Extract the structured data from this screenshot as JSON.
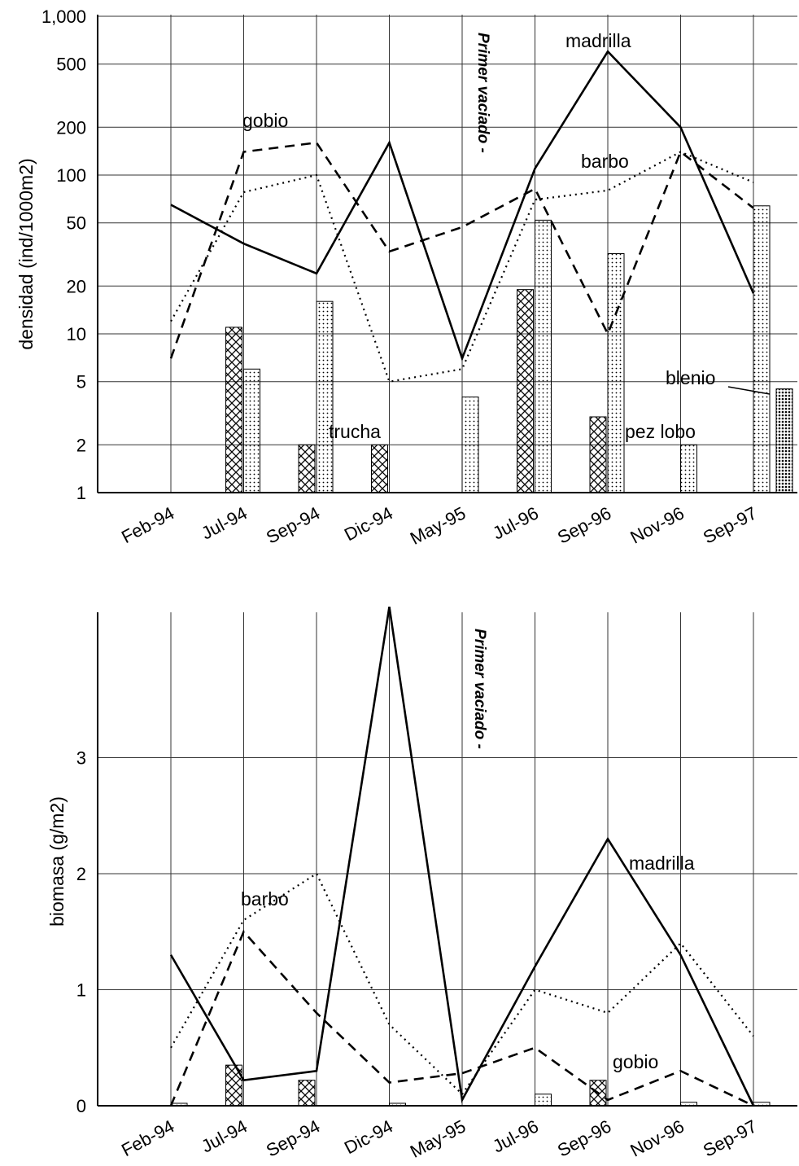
{
  "chart_data": [
    {
      "type": "line",
      "ylabel": "densidad (ind/1000m2)",
      "yscale": "log",
      "ylim": [
        1,
        1000
      ],
      "yticks": [
        "1",
        "2",
        "5",
        "10",
        "20",
        "50",
        "100",
        "200",
        "500",
        "1,000"
      ],
      "grid": true,
      "categories": [
        "Feb-94",
        "Jul-94",
        "Sep-94",
        "Dic-94",
        "May-95",
        "Jul-96",
        "Sep-96",
        "Nov-96",
        "Sep-97"
      ],
      "annotation": "Primer vaciado -",
      "series": [
        {
          "name": "madrilla",
          "kind": "line",
          "style": "solid",
          "values": [
            65,
            37,
            24,
            160,
            7,
            110,
            600,
            200,
            18
          ]
        },
        {
          "name": "gobio",
          "kind": "line",
          "style": "dashed",
          "values": [
            7,
            140,
            160,
            33,
            47,
            82,
            10,
            140,
            62
          ]
        },
        {
          "name": "barbo",
          "kind": "line",
          "style": "dotted",
          "values": [
            12,
            78,
            100,
            5,
            6,
            70,
            80,
            140,
            90
          ]
        },
        {
          "name": "trucha",
          "kind": "bar",
          "pattern": "crosshatch",
          "values": [
            null,
            11,
            2,
            2,
            null,
            19,
            3,
            null,
            null
          ]
        },
        {
          "name": "pez lobo",
          "kind": "bar",
          "pattern": "dots",
          "values": [
            null,
            6,
            16,
            null,
            4,
            52,
            32,
            2,
            64
          ]
        },
        {
          "name": "blenio",
          "kind": "bar",
          "pattern": "dense-dots",
          "values": [
            null,
            null,
            null,
            null,
            null,
            null,
            null,
            null,
            4.5
          ]
        }
      ],
      "labels": {
        "madrilla": "madrilla",
        "gobio": "gobio",
        "barbo": "barbo",
        "trucha": "trucha",
        "pezlobo": "pez lobo",
        "blenio": "blenio"
      }
    },
    {
      "type": "line",
      "ylabel": "biomasa (g/m2)",
      "ylim": [
        0,
        4.6
      ],
      "yticks": [
        "0",
        "1",
        "2",
        "3"
      ],
      "grid": true,
      "categories": [
        "Feb-94",
        "Jul-94",
        "Sep-94",
        "Dic-94",
        "May-95",
        "Jul-96",
        "Sep-96",
        "Nov-96",
        "Sep-97"
      ],
      "annotation": "Primer vaciado -",
      "series": [
        {
          "name": "madrilla",
          "kind": "line",
          "style": "solid",
          "values": [
            1.3,
            0.22,
            0.3,
            4.3,
            0.05,
            1.2,
            2.3,
            1.3,
            0.0
          ]
        },
        {
          "name": "gobio",
          "kind": "line",
          "style": "dashed",
          "values": [
            0.0,
            1.5,
            0.8,
            0.2,
            0.28,
            0.5,
            0.05,
            0.3,
            0.0
          ]
        },
        {
          "name": "barbo",
          "kind": "line",
          "style": "dotted",
          "values": [
            0.5,
            1.6,
            2.0,
            0.7,
            0.1,
            1.0,
            0.8,
            1.4,
            0.6
          ]
        },
        {
          "name": "trucha",
          "kind": "bar",
          "pattern": "crosshatch",
          "values": [
            null,
            0.35,
            0.22,
            null,
            null,
            null,
            0.22,
            null,
            null
          ]
        },
        {
          "name": "pez lobo",
          "kind": "bar",
          "pattern": "dots",
          "values": [
            0.02,
            null,
            null,
            0.02,
            null,
            0.1,
            null,
            0.03,
            0.03
          ]
        }
      ],
      "labels": {
        "madrilla": "madrilla",
        "gobio": "gobio",
        "barbo": "barbo"
      }
    }
  ]
}
